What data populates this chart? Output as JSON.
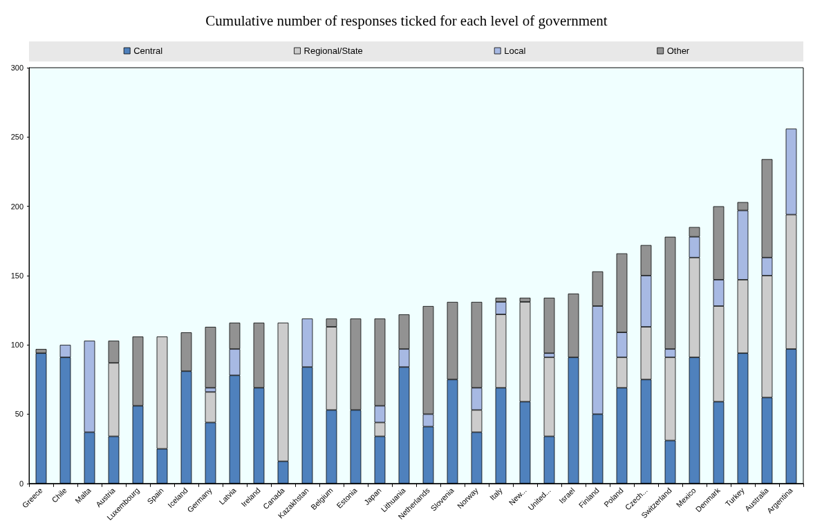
{
  "chart_data": {
    "type": "bar",
    "title": "Cumulative number of responses ticked for each level of government",
    "stacked": true,
    "legend": "top",
    "grid": false,
    "categories": [
      "Greece",
      "Chile",
      "Malta",
      "Austria",
      "Luxembourg",
      "Spain",
      "Iceland",
      "Germany",
      "Latvia",
      "Ireland",
      "Canada",
      "Kazakhstan",
      "Belgium",
      "Estonia",
      "Japan",
      "Lithuania",
      "Netherlands",
      "Slovenia",
      "Norway",
      "Italy",
      "New...",
      "United...",
      "Israel",
      "Finland",
      "Poland",
      "Czech...",
      "Switzerland",
      "Mexico",
      "Denmark",
      "Turkey",
      "Australia",
      "Argentina"
    ],
    "ylim": [
      0,
      300
    ],
    "yticks": [
      0,
      50,
      100,
      150,
      200,
      250,
      300
    ],
    "series": [
      {
        "name": "Central",
        "color": "#4f81bd",
        "values": [
          94,
          91,
          37,
          34,
          56,
          25,
          81,
          44,
          78,
          69,
          16,
          84,
          53,
          53,
          34,
          84,
          41,
          75,
          37,
          69,
          59,
          34,
          91,
          50,
          69,
          75,
          31,
          91,
          59,
          94,
          62,
          97
        ]
      },
      {
        "name": "Regional/State",
        "color": "#cccccc",
        "values": [
          0,
          0,
          0,
          53,
          0,
          81,
          0,
          22,
          0,
          0,
          100,
          0,
          60,
          0,
          10,
          0,
          0,
          0,
          16,
          53,
          72,
          57,
          0,
          0,
          22,
          38,
          60,
          72,
          69,
          53,
          88,
          97
        ]
      },
      {
        "name": "Local",
        "color": "#a7b9e3",
        "values": [
          0,
          9,
          66,
          0,
          0,
          0,
          0,
          3,
          19,
          0,
          0,
          35,
          0,
          0,
          12,
          13,
          9,
          0,
          16,
          9,
          0,
          3,
          0,
          78,
          18,
          37,
          6,
          15,
          19,
          50,
          13,
          62
        ]
      },
      {
        "name": "Other",
        "color": "#929292",
        "values": [
          3,
          0,
          0,
          16,
          50,
          0,
          28,
          44,
          19,
          47,
          0,
          0,
          6,
          66,
          63,
          25,
          78,
          56,
          62,
          3,
          3,
          40,
          46,
          25,
          57,
          22,
          81,
          7,
          53,
          6,
          71,
          0
        ]
      }
    ]
  }
}
